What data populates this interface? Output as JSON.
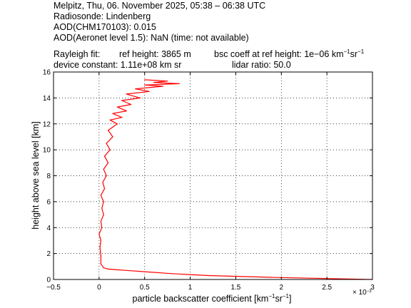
{
  "header": {
    "line1": "Melpitz, Thu, 06. November 2025, 05:38 – 06:38 UTC",
    "line2": "Radiosonde: Lindenberg",
    "line3": "AOD(CHM170103): 0.015",
    "line4": "AOD(Aeronet level 1.5): NaN   (time: not available)",
    "rayleigh_fit": "Rayleigh fit:",
    "ref_height": "ref height: 3865 m",
    "bsc_coeff_prefix": "bsc coeff at ref height: 1e−06 km",
    "bsc_coeff_sr": "sr",
    "unit_exp": "−1",
    "device_constant": "device constant: 1.11e+08 km sr",
    "lidar_ratio": "lidar ratio: 50.0"
  },
  "chart_data": {
    "type": "line",
    "xlabel_prefix": "particle backscatter coefficient [km",
    "xlabel_sr": "sr",
    "xlabel_suffix": "]",
    "xlabel_exp": "−1",
    "ylabel": "height above sea level [km]",
    "xlim": [
      -0.5,
      3
    ],
    "ylim": [
      0,
      16
    ],
    "x_ticks": [
      -0.5,
      0,
      0.5,
      1,
      1.5,
      2,
      2.5,
      3
    ],
    "x_tick_labels": [
      "−0.5",
      "0",
      "0.5",
      "1",
      "1.5",
      "2",
      "2.5",
      "3"
    ],
    "y_ticks": [
      0,
      2,
      4,
      6,
      8,
      10,
      12,
      14,
      16
    ],
    "y_tick_labels": [
      "0",
      "2",
      "4",
      "6",
      "8",
      "10",
      "12",
      "14",
      "16"
    ],
    "x_multiplier_base": "× 10",
    "x_multiplier_exp": "−3",
    "grid": true,
    "line_color": "#ff0000",
    "series": [
      {
        "x": [
          3.0,
          2.0,
          1.2,
          0.8,
          0.5,
          0.3,
          0.2,
          0.1,
          0.05,
          0.02,
          0.02,
          0.01,
          0.02,
          0.0,
          0.03,
          0.02,
          0.05,
          0.03,
          0.05,
          0.02,
          0.06,
          0.04,
          0.08,
          0.05,
          0.1,
          0.06,
          0.12,
          0.08,
          0.15,
          0.1,
          0.2,
          0.12,
          0.25,
          0.15,
          0.3,
          0.2,
          0.35,
          0.25,
          0.45,
          0.3,
          0.55,
          0.4,
          0.7,
          0.5,
          0.88,
          0.6,
          0.75,
          0.5
        ],
        "y": [
          0.0,
          0.15,
          0.3,
          0.45,
          0.6,
          0.7,
          0.75,
          0.8,
          0.9,
          1.2,
          1.8,
          2.5,
          3.0,
          3.5,
          4.0,
          4.5,
          5.0,
          5.5,
          6.0,
          6.5,
          7.0,
          7.5,
          8.0,
          8.5,
          9.0,
          9.5,
          10.0,
          10.5,
          11.0,
          11.5,
          12.0,
          12.3,
          12.5,
          12.8,
          13.0,
          13.3,
          13.5,
          13.8,
          14.0,
          14.3,
          14.5,
          14.7,
          14.9,
          15.0,
          15.1,
          15.2,
          15.3,
          15.4
        ]
      }
    ]
  }
}
